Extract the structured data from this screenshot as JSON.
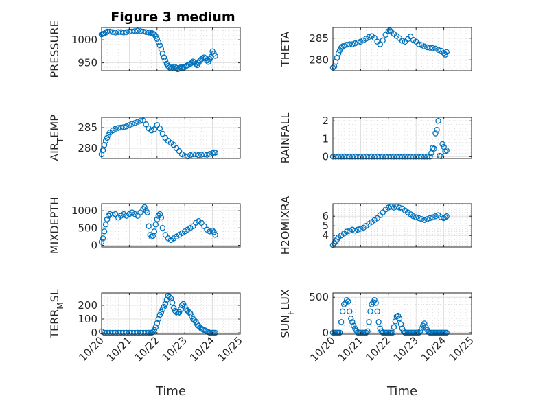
{
  "figure_title": "Figure 3 medium",
  "colors": {
    "marker": "#0072BD",
    "grid": "#d9d9d9",
    "axis": "#262626"
  },
  "chart_data": [
    {
      "type": "scatter",
      "ylabel": "PRESSURE",
      "title": "Figure 3 medium",
      "xlim": [
        0,
        5
      ],
      "ylim": [
        933,
        1027
      ],
      "yticks": [
        950,
        1000
      ],
      "xticks": [
        0,
        1,
        2,
        3,
        4,
        5
      ],
      "x": [
        0,
        0.05,
        0.1,
        0.15,
        0.2,
        0.3,
        0.4,
        0.5,
        0.6,
        0.7,
        0.8,
        0.9,
        1.0,
        1.1,
        1.2,
        1.3,
        1.4,
        1.5,
        1.6,
        1.7,
        1.75,
        1.8,
        1.85,
        1.9,
        1.95,
        2.0,
        2.05,
        2.1,
        2.15,
        2.2,
        2.25,
        2.3,
        2.35,
        2.4,
        2.45,
        2.5,
        2.55,
        2.6,
        2.65,
        2.7,
        2.75,
        2.8,
        2.85,
        2.9,
        2.95,
        3.0,
        3.05,
        3.1,
        3.15,
        3.2,
        3.25,
        3.3,
        3.35,
        3.4,
        3.45,
        3.5,
        3.55,
        3.6,
        3.65,
        3.7,
        3.75,
        3.8,
        3.85,
        3.9,
        3.95,
        4.0,
        4.05,
        4.1
      ],
      "y": [
        1012,
        1013,
        1014,
        1016,
        1018,
        1018,
        1017,
        1016,
        1017,
        1017,
        1016,
        1017,
        1018,
        1018,
        1019,
        1020,
        1019,
        1018,
        1017,
        1016,
        1016,
        1015,
        1014,
        1012,
        1008,
        1002,
        995,
        988,
        980,
        970,
        962,
        955,
        948,
        943,
        940,
        938,
        940,
        938,
        941,
        939,
        936,
        938,
        940,
        940,
        939,
        941,
        943,
        945,
        946,
        948,
        950,
        953,
        951,
        948,
        945,
        950,
        955,
        958,
        960,
        962,
        960,
        955,
        952,
        958,
        963,
        975,
        970,
        965
      ]
    },
    {
      "type": "scatter",
      "ylabel": "THETA",
      "xlim": [
        0,
        5
      ],
      "ylim": [
        277.5,
        287.5
      ],
      "yticks": [
        280,
        285
      ],
      "xticks": [
        0,
        1,
        2,
        3,
        4,
        5
      ],
      "x": [
        0,
        0.05,
        0.1,
        0.15,
        0.2,
        0.25,
        0.3,
        0.35,
        0.4,
        0.5,
        0.6,
        0.7,
        0.8,
        0.9,
        1.0,
        1.1,
        1.2,
        1.3,
        1.4,
        1.5,
        1.6,
        1.7,
        1.8,
        1.9,
        2.0,
        2.05,
        2.1,
        2.2,
        2.3,
        2.4,
        2.5,
        2.6,
        2.7,
        2.8,
        2.9,
        3.0,
        3.1,
        3.2,
        3.3,
        3.4,
        3.5,
        3.6,
        3.7,
        3.8,
        3.9,
        4.0,
        4.05,
        4.1
      ],
      "y": [
        278.2,
        278.5,
        279.5,
        280.5,
        281.5,
        282.2,
        282.8,
        283.1,
        283.3,
        283.5,
        283.6,
        283.6,
        283.8,
        284.0,
        284.2,
        284.5,
        284.9,
        285.3,
        285.5,
        285.1,
        284.2,
        283.6,
        284.5,
        285.8,
        286.6,
        286.8,
        286.5,
        286.0,
        285.5,
        285.0,
        284.4,
        284.2,
        284.8,
        285.4,
        284.6,
        284.2,
        283.6,
        283.4,
        283.1,
        282.9,
        282.8,
        282.7,
        282.6,
        282.3,
        282.1,
        281.6,
        281.2,
        281.8
      ]
    },
    {
      "type": "scatter",
      "ylabel": "AIR_TEMP",
      "xlim": [
        0,
        5
      ],
      "ylim": [
        277.5,
        287.5
      ],
      "yticks": [
        280,
        285
      ],
      "xticks": [
        0,
        1,
        2,
        3,
        4,
        5
      ],
      "x": [
        0,
        0.05,
        0.1,
        0.15,
        0.2,
        0.25,
        0.3,
        0.4,
        0.5,
        0.6,
        0.7,
        0.8,
        0.9,
        1.0,
        1.1,
        1.2,
        1.3,
        1.4,
        1.5,
        1.6,
        1.7,
        1.8,
        1.9,
        2.0,
        2.1,
        2.2,
        2.3,
        2.4,
        2.5,
        2.6,
        2.7,
        2.8,
        2.9,
        3.0,
        3.1,
        3.2,
        3.3,
        3.4,
        3.5,
        3.6,
        3.7,
        3.8,
        3.9,
        4.0,
        4.05,
        4.1
      ],
      "y": [
        278.5,
        279.5,
        280.8,
        281.8,
        282.5,
        283.2,
        283.8,
        284.3,
        284.7,
        284.9,
        285.0,
        285.1,
        285.3,
        285.6,
        285.9,
        286.1,
        286.4,
        286.6,
        286.7,
        285.8,
        284.8,
        284.3,
        284.6,
        285.6,
        284.8,
        283.5,
        282.5,
        281.8,
        281.3,
        280.8,
        280.0,
        279.3,
        278.5,
        278.1,
        278.0,
        278.3,
        278.5,
        278.5,
        278.3,
        278.4,
        278.5,
        278.4,
        278.6,
        278.8,
        279.0,
        278.9
      ]
    },
    {
      "type": "scatter",
      "ylabel": "RAINFALL",
      "xlim": [
        0,
        5
      ],
      "ylim": [
        -0.1,
        2.2
      ],
      "yticks": [
        0,
        1,
        2
      ],
      "xticks": [
        0,
        1,
        2,
        3,
        4,
        5
      ],
      "x": [
        0,
        0.1,
        0.2,
        0.3,
        0.4,
        0.5,
        0.6,
        0.7,
        0.8,
        0.9,
        1.0,
        1.1,
        1.2,
        1.3,
        1.4,
        1.5,
        1.6,
        1.7,
        1.8,
        1.9,
        2.0,
        2.1,
        2.2,
        2.3,
        2.4,
        2.5,
        2.6,
        2.7,
        2.8,
        2.9,
        3.0,
        3.1,
        3.2,
        3.3,
        3.4,
        3.5,
        3.55,
        3.6,
        3.65,
        3.7,
        3.75,
        3.8,
        3.85,
        3.9,
        3.95,
        4.0,
        4.05,
        4.1
      ],
      "y": [
        0,
        0,
        0,
        0,
        0,
        0,
        0,
        0,
        0,
        0,
        0,
        0,
        0,
        0,
        0,
        0,
        0,
        0,
        0,
        0,
        0,
        0,
        0,
        0,
        0,
        0,
        0,
        0,
        0,
        0,
        0,
        0,
        0,
        0,
        0,
        0,
        0.2,
        0.5,
        0.45,
        1.3,
        1.5,
        2.0,
        0.05,
        0.02,
        0.7,
        0.55,
        0.3,
        0.35
      ]
    },
    {
      "type": "scatter",
      "ylabel": "MIXDEPTH",
      "xlim": [
        0,
        5
      ],
      "ylim": [
        -50,
        1200
      ],
      "yticks": [
        0,
        500,
        1000
      ],
      "xticks": [
        0,
        1,
        2,
        3,
        4,
        5
      ],
      "x": [
        0,
        0.05,
        0.1,
        0.15,
        0.2,
        0.25,
        0.3,
        0.4,
        0.5,
        0.6,
        0.7,
        0.8,
        0.9,
        1.0,
        1.1,
        1.2,
        1.3,
        1.4,
        1.5,
        1.55,
        1.6,
        1.65,
        1.7,
        1.75,
        1.8,
        1.85,
        1.9,
        1.95,
        2.0,
        2.05,
        2.1,
        2.15,
        2.2,
        2.3,
        2.4,
        2.5,
        2.6,
        2.7,
        2.8,
        2.9,
        3.0,
        3.1,
        3.2,
        3.3,
        3.4,
        3.5,
        3.6,
        3.7,
        3.8,
        3.9,
        4.0,
        4.05,
        4.1
      ],
      "y": [
        100,
        200,
        400,
        600,
        750,
        850,
        900,
        880,
        900,
        800,
        850,
        900,
        850,
        900,
        950,
        900,
        850,
        950,
        1050,
        1100,
        1000,
        950,
        550,
        300,
        250,
        270,
        400,
        600,
        750,
        850,
        900,
        800,
        500,
        300,
        200,
        150,
        200,
        250,
        300,
        350,
        400,
        450,
        500,
        550,
        650,
        700,
        650,
        550,
        450,
        400,
        420,
        380,
        300
      ]
    },
    {
      "type": "scatter",
      "ylabel": "H2OMIXRA",
      "xlim": [
        0,
        5
      ],
      "ylim": [
        2.8,
        7.3
      ],
      "yticks": [
        4,
        5,
        6
      ],
      "xticks": [
        0,
        1,
        2,
        3,
        4,
        5
      ],
      "x": [
        0,
        0.05,
        0.1,
        0.15,
        0.2,
        0.3,
        0.4,
        0.5,
        0.6,
        0.7,
        0.8,
        0.9,
        1.0,
        1.1,
        1.2,
        1.3,
        1.4,
        1.5,
        1.6,
        1.7,
        1.8,
        1.9,
        2.0,
        2.1,
        2.2,
        2.3,
        2.4,
        2.5,
        2.6,
        2.7,
        2.8,
        2.9,
        3.0,
        3.1,
        3.2,
        3.3,
        3.4,
        3.5,
        3.6,
        3.7,
        3.8,
        3.9,
        4.0,
        4.05,
        4.1
      ],
      "y": [
        3.0,
        3.2,
        3.4,
        3.6,
        3.8,
        4.0,
        4.2,
        4.4,
        4.5,
        4.6,
        4.5,
        4.6,
        4.7,
        4.8,
        5.0,
        5.2,
        5.4,
        5.6,
        5.8,
        6.1,
        6.4,
        6.7,
        6.9,
        7.0,
        6.9,
        7.0,
        6.9,
        6.8,
        6.6,
        6.4,
        6.2,
        6.0,
        5.9,
        5.8,
        5.7,
        5.6,
        5.7,
        5.8,
        5.9,
        6.0,
        6.1,
        5.9,
        5.8,
        5.9,
        6.0
      ]
    },
    {
      "type": "scatter",
      "ylabel": "TERR_MSL",
      "xlim": [
        0,
        5
      ],
      "ylim": [
        -10,
        290
      ],
      "yticks": [
        0,
        100,
        200
      ],
      "xticks": [
        0,
        1,
        2,
        3,
        4,
        5
      ],
      "x": [
        0,
        0.1,
        0.2,
        0.3,
        0.4,
        0.5,
        0.6,
        0.7,
        0.8,
        0.9,
        1.0,
        1.1,
        1.2,
        1.3,
        1.4,
        1.5,
        1.6,
        1.7,
        1.75,
        1.8,
        1.85,
        1.9,
        1.95,
        2.0,
        2.05,
        2.1,
        2.15,
        2.2,
        2.25,
        2.3,
        2.35,
        2.4,
        2.45,
        2.5,
        2.55,
        2.6,
        2.65,
        2.7,
        2.75,
        2.8,
        2.85,
        2.9,
        2.95,
        3.0,
        3.05,
        3.1,
        3.15,
        3.2,
        3.25,
        3.3,
        3.35,
        3.4,
        3.45,
        3.5,
        3.55,
        3.6,
        3.65,
        3.7,
        3.75,
        3.8,
        3.85,
        3.9,
        3.95,
        4.0,
        4.05,
        4.1
      ],
      "y": [
        10,
        0,
        0,
        0,
        0,
        0,
        0,
        0,
        0,
        0,
        0,
        0,
        0,
        0,
        0,
        0,
        0,
        0,
        0,
        0,
        5,
        20,
        40,
        70,
        100,
        130,
        150,
        170,
        190,
        210,
        240,
        270,
        260,
        250,
        220,
        180,
        160,
        150,
        140,
        150,
        170,
        200,
        210,
        190,
        170,
        160,
        150,
        140,
        120,
        100,
        90,
        80,
        60,
        50,
        40,
        30,
        25,
        20,
        15,
        10,
        5,
        0,
        0,
        0,
        0,
        0
      ]
    },
    {
      "type": "scatter",
      "ylabel": "SUN_FLUX",
      "xlim": [
        0,
        5
      ],
      "ylim": [
        -20,
        560
      ],
      "yticks": [
        0,
        500
      ],
      "xticks": [
        0,
        1,
        2,
        3,
        4,
        5
      ],
      "xtick_labels": [
        "10/20",
        "10/21",
        "10/22",
        "10/23",
        "10/24",
        "10/25"
      ],
      "xlabel": "Time",
      "x": [
        0,
        0.05,
        0.1,
        0.15,
        0.2,
        0.25,
        0.3,
        0.35,
        0.4,
        0.45,
        0.5,
        0.55,
        0.6,
        0.65,
        0.7,
        0.75,
        0.8,
        0.85,
        0.9,
        0.95,
        1.0,
        1.05,
        1.1,
        1.15,
        1.2,
        1.25,
        1.3,
        1.35,
        1.4,
        1.45,
        1.5,
        1.55,
        1.6,
        1.65,
        1.7,
        1.75,
        1.8,
        1.85,
        1.9,
        1.95,
        2.0,
        2.05,
        2.1,
        2.15,
        2.2,
        2.25,
        2.3,
        2.35,
        2.4,
        2.45,
        2.5,
        2.55,
        2.6,
        2.65,
        2.7,
        2.75,
        2.8,
        2.85,
        2.9,
        2.95,
        3.0,
        3.05,
        3.1,
        3.15,
        3.2,
        3.25,
        3.3,
        3.35,
        3.4,
        3.45,
        3.5,
        3.55,
        3.6,
        3.65,
        3.7,
        3.75,
        3.8,
        3.85,
        3.9,
        3.95,
        4.0,
        4.05,
        4.1
      ],
      "y": [
        0,
        0,
        0,
        0,
        0,
        0,
        150,
        300,
        400,
        420,
        460,
        440,
        300,
        200,
        150,
        100,
        60,
        30,
        0,
        0,
        0,
        0,
        0,
        0,
        0,
        20,
        150,
        300,
        400,
        430,
        460,
        420,
        300,
        150,
        60,
        20,
        0,
        0,
        0,
        0,
        0,
        0,
        0,
        0,
        80,
        160,
        230,
        240,
        200,
        120,
        60,
        20,
        0,
        0,
        0,
        0,
        0,
        0,
        0,
        0,
        0,
        0,
        0,
        20,
        60,
        100,
        130,
        80,
        40,
        10,
        0,
        0,
        0,
        0,
        0,
        0,
        0,
        0,
        0,
        0,
        0,
        0,
        0
      ]
    }
  ]
}
